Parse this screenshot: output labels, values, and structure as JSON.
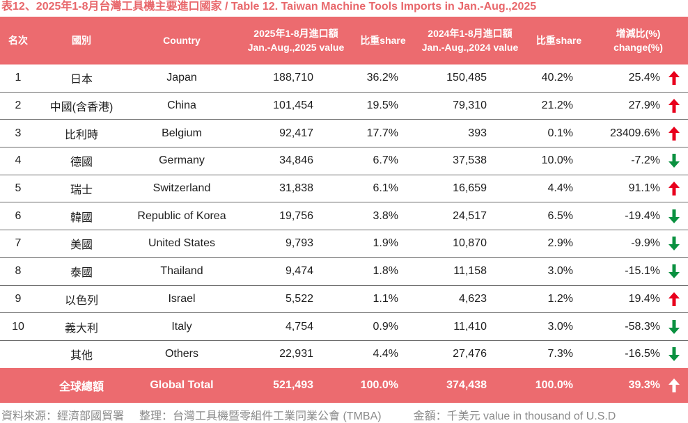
{
  "title": "表12、2025年1-8月台灣工具機主要進口國家 / Table 12. Taiwan Machine Tools Imports in Jan.-Aug.,2025",
  "colors": {
    "header_bg": "#ec6b6f",
    "title": "#e8676b",
    "up": "#e8001c",
    "down": "#0a9140",
    "total_arrow": "#ffffff"
  },
  "header": {
    "rank": "名次",
    "country_zh": "國別",
    "country_en": "Country",
    "value_2025_line1": "2025年1-8月進口額",
    "value_2025_line2": "Jan.-Aug.,2025 value",
    "share_2025": "比重share",
    "value_2024_line1": "2024年1-8月進口額",
    "value_2024_line2": "Jan.-Aug.,2024 value",
    "share_2024": "比重share",
    "change_line1": "增減比(%)",
    "change_line2": "change(%)"
  },
  "rows": [
    {
      "rank": "1",
      "country_zh": "日本",
      "country_en": "Japan",
      "value_2025": "188,710",
      "share_2025": "36.2%",
      "value_2024": "150,485",
      "share_2024": "40.2%",
      "change": "25.4%",
      "trend": "up-arrow-icon"
    },
    {
      "rank": "2",
      "country_zh": "中國(含香港)",
      "country_en": "China",
      "value_2025": "101,454",
      "share_2025": "19.5%",
      "value_2024": "79,310",
      "share_2024": "21.2%",
      "change": "27.9%",
      "trend": "up-arrow-icon"
    },
    {
      "rank": "3",
      "country_zh": "比利時",
      "country_en": "Belgium",
      "value_2025": "92,417",
      "share_2025": "17.7%",
      "value_2024": "393",
      "share_2024": "0.1%",
      "change": "23409.6%",
      "trend": "up-arrow-icon"
    },
    {
      "rank": "4",
      "country_zh": "德國",
      "country_en": "Germany",
      "value_2025": "34,846",
      "share_2025": "6.7%",
      "value_2024": "37,538",
      "share_2024": "10.0%",
      "change": "-7.2%",
      "trend": "down-arrow-icon"
    },
    {
      "rank": "5",
      "country_zh": "瑞士",
      "country_en": "Switzerland",
      "value_2025": "31,838",
      "share_2025": "6.1%",
      "value_2024": "16,659",
      "share_2024": "4.4%",
      "change": "91.1%",
      "trend": "up-arrow-icon"
    },
    {
      "rank": "6",
      "country_zh": "韓國",
      "country_en": "Republic of Korea",
      "value_2025": "19,756",
      "share_2025": "3.8%",
      "value_2024": "24,517",
      "share_2024": "6.5%",
      "change": "-19.4%",
      "trend": "down-arrow-icon"
    },
    {
      "rank": "7",
      "country_zh": "美國",
      "country_en": "United States",
      "value_2025": "9,793",
      "share_2025": "1.9%",
      "value_2024": "10,870",
      "share_2024": "2.9%",
      "change": "-9.9%",
      "trend": "down-arrow-icon"
    },
    {
      "rank": "8",
      "country_zh": "泰國",
      "country_en": "Thailand",
      "value_2025": "9,474",
      "share_2025": "1.8%",
      "value_2024": "11,158",
      "share_2024": "3.0%",
      "change": "-15.1%",
      "trend": "down-arrow-icon"
    },
    {
      "rank": "9",
      "country_zh": "以色列",
      "country_en": "Israel",
      "value_2025": "5,522",
      "share_2025": "1.1%",
      "value_2024": "4,623",
      "share_2024": "1.2%",
      "change": "19.4%",
      "trend": "up-arrow-icon"
    },
    {
      "rank": "10",
      "country_zh": "義大利",
      "country_en": "Italy",
      "value_2025": "4,754",
      "share_2025": "0.9%",
      "value_2024": "11,410",
      "share_2024": "3.0%",
      "change": "-58.3%",
      "trend": "down-arrow-icon"
    },
    {
      "rank": "",
      "country_zh": "其他",
      "country_en": "Others",
      "value_2025": "22,931",
      "share_2025": "4.4%",
      "value_2024": "27,476",
      "share_2024": "7.3%",
      "change": "-16.5%",
      "trend": "down-arrow-icon"
    }
  ],
  "total": {
    "country_zh": "全球總額",
    "country_en": "Global Total",
    "value_2025": "521,493",
    "share_2025": "100.0%",
    "value_2024": "374,438",
    "share_2024": "100.0%",
    "change": "39.3%",
    "trend": "up-arrow-icon"
  },
  "footer": {
    "source": "資料來源：經濟部國貿署",
    "compiled_by": "整理：台灣工具機暨零組件工業同業公會 (TMBA)",
    "unit": "金額：千美元 value in thousand of U.S.D"
  }
}
